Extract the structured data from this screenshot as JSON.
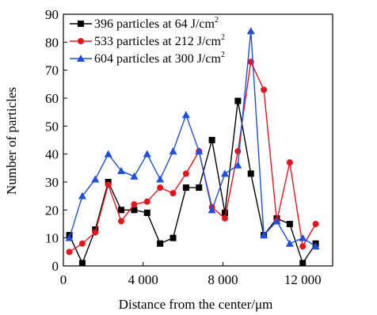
{
  "chart_data": {
    "type": "line",
    "xlabel": "Distance from the center/μm",
    "ylabel": "Number of particles",
    "xlim": [
      0,
      13500
    ],
    "ylim": [
      0,
      90
    ],
    "xticks": [
      0,
      4000,
      8000,
      12000
    ],
    "xtick_labels": [
      "0",
      "4 000",
      "8 000",
      "12 000"
    ],
    "yticks": [
      0,
      10,
      20,
      30,
      40,
      50,
      60,
      70,
      80,
      90
    ],
    "ytick_labels": [
      "0",
      "10",
      "20",
      "30",
      "40",
      "50",
      "60",
      "70",
      "80",
      "90"
    ],
    "grid": false,
    "legend_position": "top-left",
    "x": [
      300,
      950,
      1600,
      2250,
      2900,
      3550,
      4200,
      4850,
      5500,
      6150,
      6800,
      7450,
      8100,
      8750,
      9400,
      10050,
      10700,
      11350,
      12000,
      12650
    ],
    "series": [
      {
        "name": "396 particles at 64 J/cm",
        "superscript": "2",
        "color": "#000000",
        "marker": "square",
        "values": [
          11,
          1,
          13,
          30,
          20,
          20,
          19,
          8,
          10,
          28,
          28,
          45,
          19,
          59,
          33,
          11,
          17,
          15,
          1,
          8
        ]
      },
      {
        "name": "533 particles at 212 J/cm",
        "superscript": "2",
        "color": "#e8141c",
        "marker": "circle",
        "values": [
          5,
          8,
          12,
          29,
          16,
          22,
          23,
          28,
          26,
          33,
          41,
          21,
          17,
          41,
          73,
          63,
          16,
          37,
          7,
          15
        ]
      },
      {
        "name": "604 particles at 300 J/cm",
        "superscript": "2",
        "color": "#1f4fe0",
        "marker": "triangle",
        "values": [
          10,
          25,
          31,
          40,
          34,
          32,
          40,
          31,
          41,
          54,
          41,
          20,
          33,
          36,
          84,
          11,
          16,
          8,
          10,
          7
        ]
      }
    ]
  }
}
